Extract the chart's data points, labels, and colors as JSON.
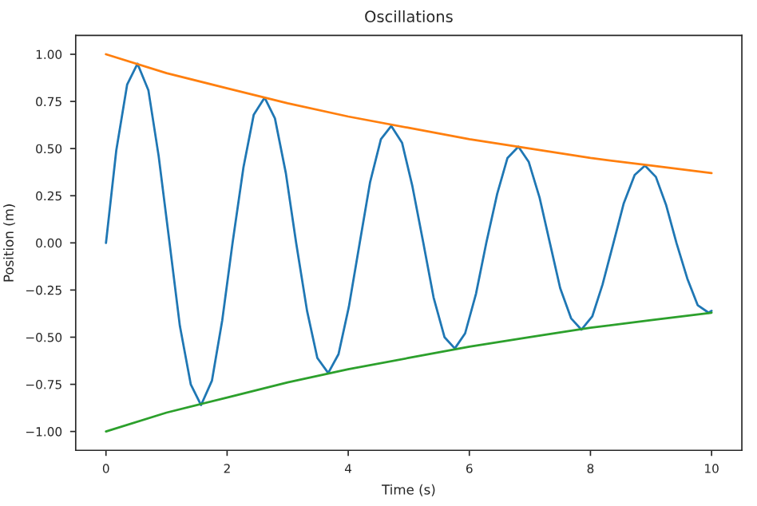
{
  "chart_data": {
    "type": "line",
    "title": "Oscillations",
    "xlabel": "Time (s)",
    "ylabel": "Position (m)",
    "xlim": [
      -0.5,
      10.5
    ],
    "xticks": [
      0,
      2,
      4,
      6,
      8,
      10
    ],
    "ylim": [
      -1.1,
      1.1
    ],
    "yticks": [
      {
        "value": -1,
        "label": "−1.00"
      },
      {
        "value": -0.75,
        "label": "−0.75"
      },
      {
        "value": -0.5,
        "label": "−0.50"
      },
      {
        "value": -0.25,
        "label": "−0.25"
      },
      {
        "value": 0,
        "label": "0.00"
      },
      {
        "value": 0.25,
        "label": "0.25"
      },
      {
        "value": 0.5,
        "label": "0.50"
      },
      {
        "value": 0.75,
        "label": "0.75"
      },
      {
        "value": 1,
        "label": "1.00"
      }
    ],
    "line_style": "solid",
    "series": [
      {
        "color": "#1f77b4",
        "x": [
          0,
          0.17,
          0.35,
          0.52,
          0.7,
          0.87,
          1.05,
          1.22,
          1.4,
          1.57,
          1.75,
          1.92,
          2.09,
          2.27,
          2.44,
          2.62,
          2.79,
          2.97,
          3.14,
          3.32,
          3.49,
          3.67,
          3.84,
          4.01,
          4.19,
          4.36,
          4.54,
          4.71,
          4.89,
          5.06,
          5.24,
          5.41,
          5.59,
          5.76,
          5.93,
          6.11,
          6.28,
          6.46,
          6.63,
          6.81,
          6.98,
          7.16,
          7.33,
          7.5,
          7.68,
          7.85,
          8.03,
          8.2,
          8.38,
          8.55,
          8.73,
          8.9,
          9.08,
          9.25,
          9.42,
          9.6,
          9.77,
          9.95,
          10
        ],
        "values": [
          0,
          0.49,
          0.84,
          0.95,
          0.81,
          0.46,
          0,
          -0.44,
          -0.75,
          -0.86,
          -0.73,
          -0.41,
          0,
          0.4,
          0.68,
          0.77,
          0.66,
          0.37,
          0,
          -0.36,
          -0.61,
          -0.69,
          -0.59,
          -0.34,
          0,
          0.32,
          0.55,
          0.62,
          0.53,
          0.3,
          0,
          -0.29,
          -0.5,
          -0.56,
          -0.48,
          -0.27,
          0,
          0.26,
          0.45,
          0.51,
          0.43,
          0.24,
          0,
          -0.24,
          -0.4,
          -0.46,
          -0.39,
          -0.22,
          0,
          0.21,
          0.36,
          0.41,
          0.35,
          0.2,
          0,
          -0.19,
          -0.33,
          -0.37,
          -0.36
        ]
      },
      {
        "color": "#ff7f0e",
        "x": [
          0,
          1,
          2,
          3,
          4,
          5,
          6,
          7,
          8,
          9,
          10
        ],
        "values": [
          1,
          0.9,
          0.82,
          0.74,
          0.67,
          0.61,
          0.55,
          0.5,
          0.45,
          0.41,
          0.37
        ]
      },
      {
        "color": "#2ca02c",
        "x": [
          0,
          1,
          2,
          3,
          4,
          5,
          6,
          7,
          8,
          9,
          10
        ],
        "values": [
          -1,
          -0.9,
          -0.82,
          -0.74,
          -0.67,
          -0.61,
          -0.55,
          -0.5,
          -0.45,
          -0.41,
          -0.37
        ]
      }
    ]
  }
}
